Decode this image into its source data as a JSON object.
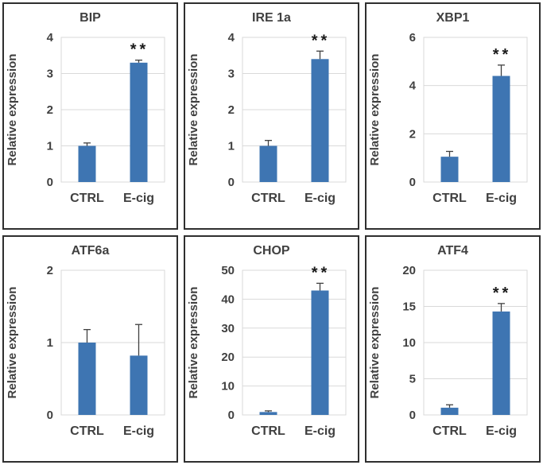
{
  "figure": {
    "description": "Six-panel bar chart figure of relative gene expression, CTRL vs E-cig",
    "shared_ylabel": "Relative expression",
    "shared_categories": [
      "CTRL",
      "E-cig"
    ],
    "significance_symbol": "**"
  },
  "style": {
    "bar_color": "#3E75B2",
    "grid_color": "#D9D9D9",
    "text_color": "#404040",
    "error_color": "#404040",
    "sig_color": "#1a1a1a",
    "panel_border_color": "#2f2f2f"
  },
  "chart_data": [
    {
      "type": "bar",
      "title": "BIP",
      "categories": [
        "CTRL",
        "E-cig"
      ],
      "values": [
        1.0,
        3.3
      ],
      "errors_up": [
        0.08,
        0.07
      ],
      "ylabel": "Relative expression",
      "xlabel": "",
      "ylim": [
        0,
        4
      ],
      "yticks": [
        0,
        1,
        2,
        3,
        4
      ],
      "grid": true,
      "sig": {
        "label": "**",
        "bar": 1
      }
    },
    {
      "type": "bar",
      "title": "IRE 1a",
      "categories": [
        "CTRL",
        "E-cig"
      ],
      "values": [
        1.0,
        3.4
      ],
      "errors_up": [
        0.15,
        0.22
      ],
      "ylabel": "Relative expression",
      "xlabel": "",
      "ylim": [
        0,
        4
      ],
      "yticks": [
        0,
        1,
        2,
        3,
        4
      ],
      "grid": true,
      "sig": {
        "label": "**",
        "bar": 1
      }
    },
    {
      "type": "bar",
      "title": "XBP1",
      "categories": [
        "CTRL",
        "E-cig"
      ],
      "values": [
        1.05,
        4.4
      ],
      "errors_up": [
        0.22,
        0.45
      ],
      "ylabel": "Relative expression",
      "xlabel": "",
      "ylim": [
        0,
        6
      ],
      "yticks": [
        0,
        2,
        4,
        6
      ],
      "grid": true,
      "sig": {
        "label": "**",
        "bar": 1
      }
    },
    {
      "type": "bar",
      "title": "ATF6a",
      "categories": [
        "CTRL",
        "E-cig"
      ],
      "values": [
        1.0,
        0.82
      ],
      "errors_up": [
        0.18,
        0.43
      ],
      "ylabel": "Relative expression",
      "xlabel": "",
      "ylim": [
        0,
        2
      ],
      "yticks": [
        0,
        1,
        2
      ],
      "grid": true,
      "sig": null
    },
    {
      "type": "bar",
      "title": "CHOP",
      "categories": [
        "CTRL",
        "E-cig"
      ],
      "values": [
        1.0,
        43
      ],
      "errors_up": [
        0.4,
        2.5
      ],
      "ylabel": "Relative expression",
      "xlabel": "",
      "ylim": [
        0,
        50
      ],
      "yticks": [
        0,
        10,
        20,
        30,
        40,
        50
      ],
      "grid": true,
      "sig": {
        "label": "**",
        "bar": 1
      }
    },
    {
      "type": "bar",
      "title": "ATF4",
      "categories": [
        "CTRL",
        "E-cig"
      ],
      "values": [
        1.0,
        14.3
      ],
      "errors_up": [
        0.4,
        1.1
      ],
      "ylabel": "Relative expression",
      "xlabel": "",
      "ylim": [
        0,
        20
      ],
      "yticks": [
        0,
        5,
        10,
        15,
        20
      ],
      "grid": true,
      "sig": {
        "label": "**",
        "bar": 1
      }
    }
  ]
}
